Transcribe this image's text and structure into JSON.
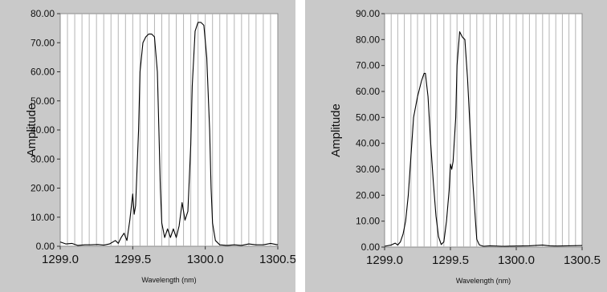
{
  "chart_data": [
    {
      "type": "line",
      "xlabel": "Wavelength (nm)",
      "ylabel": "Amplitude",
      "xlim": [
        1299.0,
        1300.5
      ],
      "ylim": [
        0,
        80
      ],
      "x_ticks": [
        "1299.0",
        "1299.5",
        "1300.0",
        "1300.5"
      ],
      "y_ticks": [
        "0.00",
        "10.00",
        "20.00",
        "30.00",
        "40.00",
        "50.00",
        "60.00",
        "70.00",
        "80.00"
      ],
      "grid": "vertical",
      "series": [
        {
          "color": "#000000",
          "points": [
            [
              1299.0,
              1.5
            ],
            [
              1299.04,
              0.8
            ],
            [
              1299.08,
              1.0
            ],
            [
              1299.12,
              0.3
            ],
            [
              1299.17,
              0.5
            ],
            [
              1299.21,
              0.5
            ],
            [
              1299.26,
              0.6
            ],
            [
              1299.3,
              0.4
            ],
            [
              1299.34,
              0.8
            ],
            [
              1299.38,
              2.0
            ],
            [
              1299.4,
              1.0
            ],
            [
              1299.42,
              3.0
            ],
            [
              1299.44,
              4.5
            ],
            [
              1299.46,
              2.0
            ],
            [
              1299.48,
              9.0
            ],
            [
              1299.5,
              18.0
            ],
            [
              1299.51,
              11.0
            ],
            [
              1299.52,
              14.0
            ],
            [
              1299.54,
              40.0
            ],
            [
              1299.55,
              60.0
            ],
            [
              1299.57,
              70.0
            ],
            [
              1299.59,
              72.0
            ],
            [
              1299.61,
              73.0
            ],
            [
              1299.63,
              73.0
            ],
            [
              1299.65,
              72.0
            ],
            [
              1299.67,
              60.0
            ],
            [
              1299.68,
              40.0
            ],
            [
              1299.69,
              20.0
            ],
            [
              1299.7,
              8.0
            ],
            [
              1299.72,
              3.0
            ],
            [
              1299.74,
              6.0
            ],
            [
              1299.76,
              3.0
            ],
            [
              1299.78,
              6.0
            ],
            [
              1299.8,
              3.0
            ],
            [
              1299.82,
              7.0
            ],
            [
              1299.84,
              15.0
            ],
            [
              1299.86,
              9.0
            ],
            [
              1299.88,
              12.0
            ],
            [
              1299.9,
              35.0
            ],
            [
              1299.91,
              55.0
            ],
            [
              1299.93,
              74.0
            ],
            [
              1299.95,
              77.0
            ],
            [
              1299.97,
              77.0
            ],
            [
              1299.99,
              76.0
            ],
            [
              1300.01,
              65.0
            ],
            [
              1300.03,
              40.0
            ],
            [
              1300.04,
              20.0
            ],
            [
              1300.05,
              8.0
            ],
            [
              1300.07,
              2.0
            ],
            [
              1300.1,
              0.5
            ],
            [
              1300.15,
              0.3
            ],
            [
              1300.2,
              0.5
            ],
            [
              1300.25,
              0.3
            ],
            [
              1300.3,
              0.8
            ],
            [
              1300.35,
              0.5
            ],
            [
              1300.4,
              0.5
            ],
            [
              1300.45,
              1.0
            ],
            [
              1300.5,
              0.5
            ]
          ]
        }
      ]
    },
    {
      "type": "line",
      "xlabel": "Wavelength (nm)",
      "ylabel": "Amplitude",
      "xlim": [
        1299.0,
        1300.5
      ],
      "ylim": [
        0,
        90
      ],
      "x_ticks": [
        "1299.0",
        "1299.5",
        "1300.0",
        "1300.5"
      ],
      "y_ticks": [
        "0.00",
        "10.00",
        "20.00",
        "30.00",
        "40.00",
        "50.00",
        "60.00",
        "70.00",
        "80.00",
        "90.00"
      ],
      "grid": "vertical",
      "series": [
        {
          "color": "#000000",
          "points": [
            [
              1299.0,
              0.3
            ],
            [
              1299.05,
              0.8
            ],
            [
              1299.08,
              1.5
            ],
            [
              1299.1,
              0.8
            ],
            [
              1299.12,
              2.0
            ],
            [
              1299.14,
              5.0
            ],
            [
              1299.16,
              10.0
            ],
            [
              1299.18,
              20.0
            ],
            [
              1299.2,
              35.0
            ],
            [
              1299.22,
              50.0
            ],
            [
              1299.25,
              58.0
            ],
            [
              1299.28,
              64.0
            ],
            [
              1299.3,
              67.0
            ],
            [
              1299.31,
              67.0
            ],
            [
              1299.33,
              58.0
            ],
            [
              1299.35,
              40.0
            ],
            [
              1299.37,
              25.0
            ],
            [
              1299.39,
              12.0
            ],
            [
              1299.41,
              4.0
            ],
            [
              1299.43,
              1.0
            ],
            [
              1299.45,
              2.0
            ],
            [
              1299.47,
              10.0
            ],
            [
              1299.49,
              22.0
            ],
            [
              1299.5,
              32.0
            ],
            [
              1299.51,
              30.0
            ],
            [
              1299.52,
              33.0
            ],
            [
              1299.54,
              50.0
            ],
            [
              1299.55,
              70.0
            ],
            [
              1299.57,
              83.0
            ],
            [
              1299.59,
              81.0
            ],
            [
              1299.61,
              80.0
            ],
            [
              1299.63,
              65.0
            ],
            [
              1299.65,
              45.0
            ],
            [
              1299.67,
              25.0
            ],
            [
              1299.69,
              10.0
            ],
            [
              1299.7,
              3.0
            ],
            [
              1299.72,
              0.8
            ],
            [
              1299.75,
              0.3
            ],
            [
              1299.8,
              0.5
            ],
            [
              1299.9,
              0.3
            ],
            [
              1300.0,
              0.4
            ],
            [
              1300.1,
              0.5
            ],
            [
              1300.2,
              0.8
            ],
            [
              1300.25,
              0.5
            ],
            [
              1300.3,
              0.4
            ],
            [
              1300.4,
              0.5
            ],
            [
              1300.5,
              0.6
            ]
          ]
        }
      ]
    }
  ]
}
